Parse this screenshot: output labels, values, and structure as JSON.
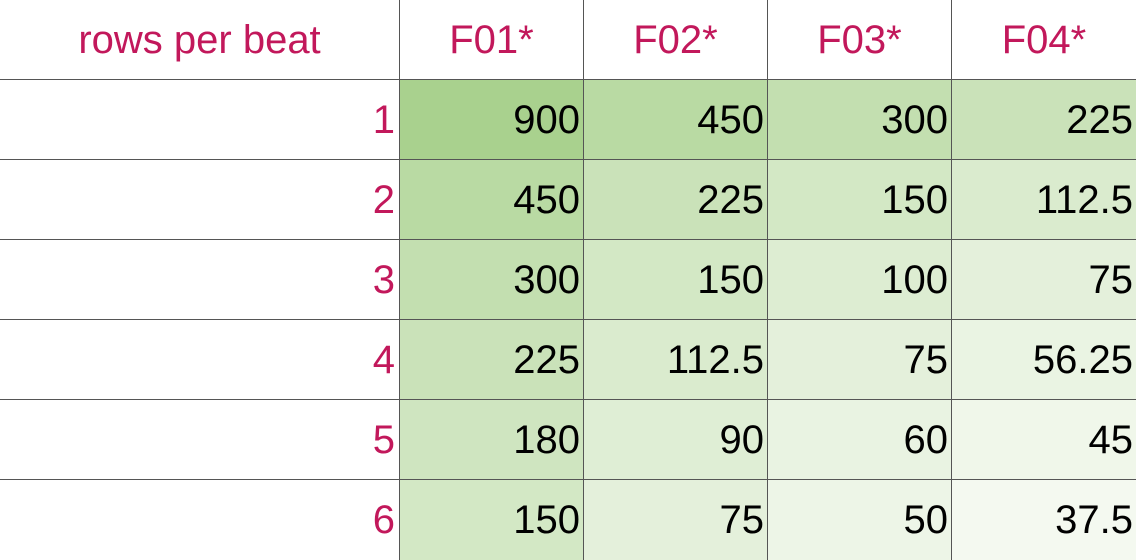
{
  "table": {
    "corner_label": "rows per beat",
    "columns": [
      "F01*",
      "F02*",
      "F03*",
      "F04*"
    ],
    "rows": [
      {
        "label": "1",
        "values": [
          "900",
          "450",
          "300",
          "225"
        ]
      },
      {
        "label": "2",
        "values": [
          "450",
          "225",
          "150",
          "112.5"
        ]
      },
      {
        "label": "3",
        "values": [
          "300",
          "150",
          "100",
          "75"
        ]
      },
      {
        "label": "4",
        "values": [
          "225",
          "112.5",
          "75",
          "56.25"
        ]
      },
      {
        "label": "5",
        "values": [
          "180",
          "90",
          "60",
          "45"
        ]
      },
      {
        "label": "6",
        "values": [
          "150",
          "75",
          "50",
          "37.5"
        ]
      }
    ],
    "colors": {
      "label_text": "#c2185b",
      "value_text": "#000000",
      "scale_high": "#a9d18e",
      "scale_low": "#f4f9f0",
      "grid_line": "#555555"
    }
  }
}
